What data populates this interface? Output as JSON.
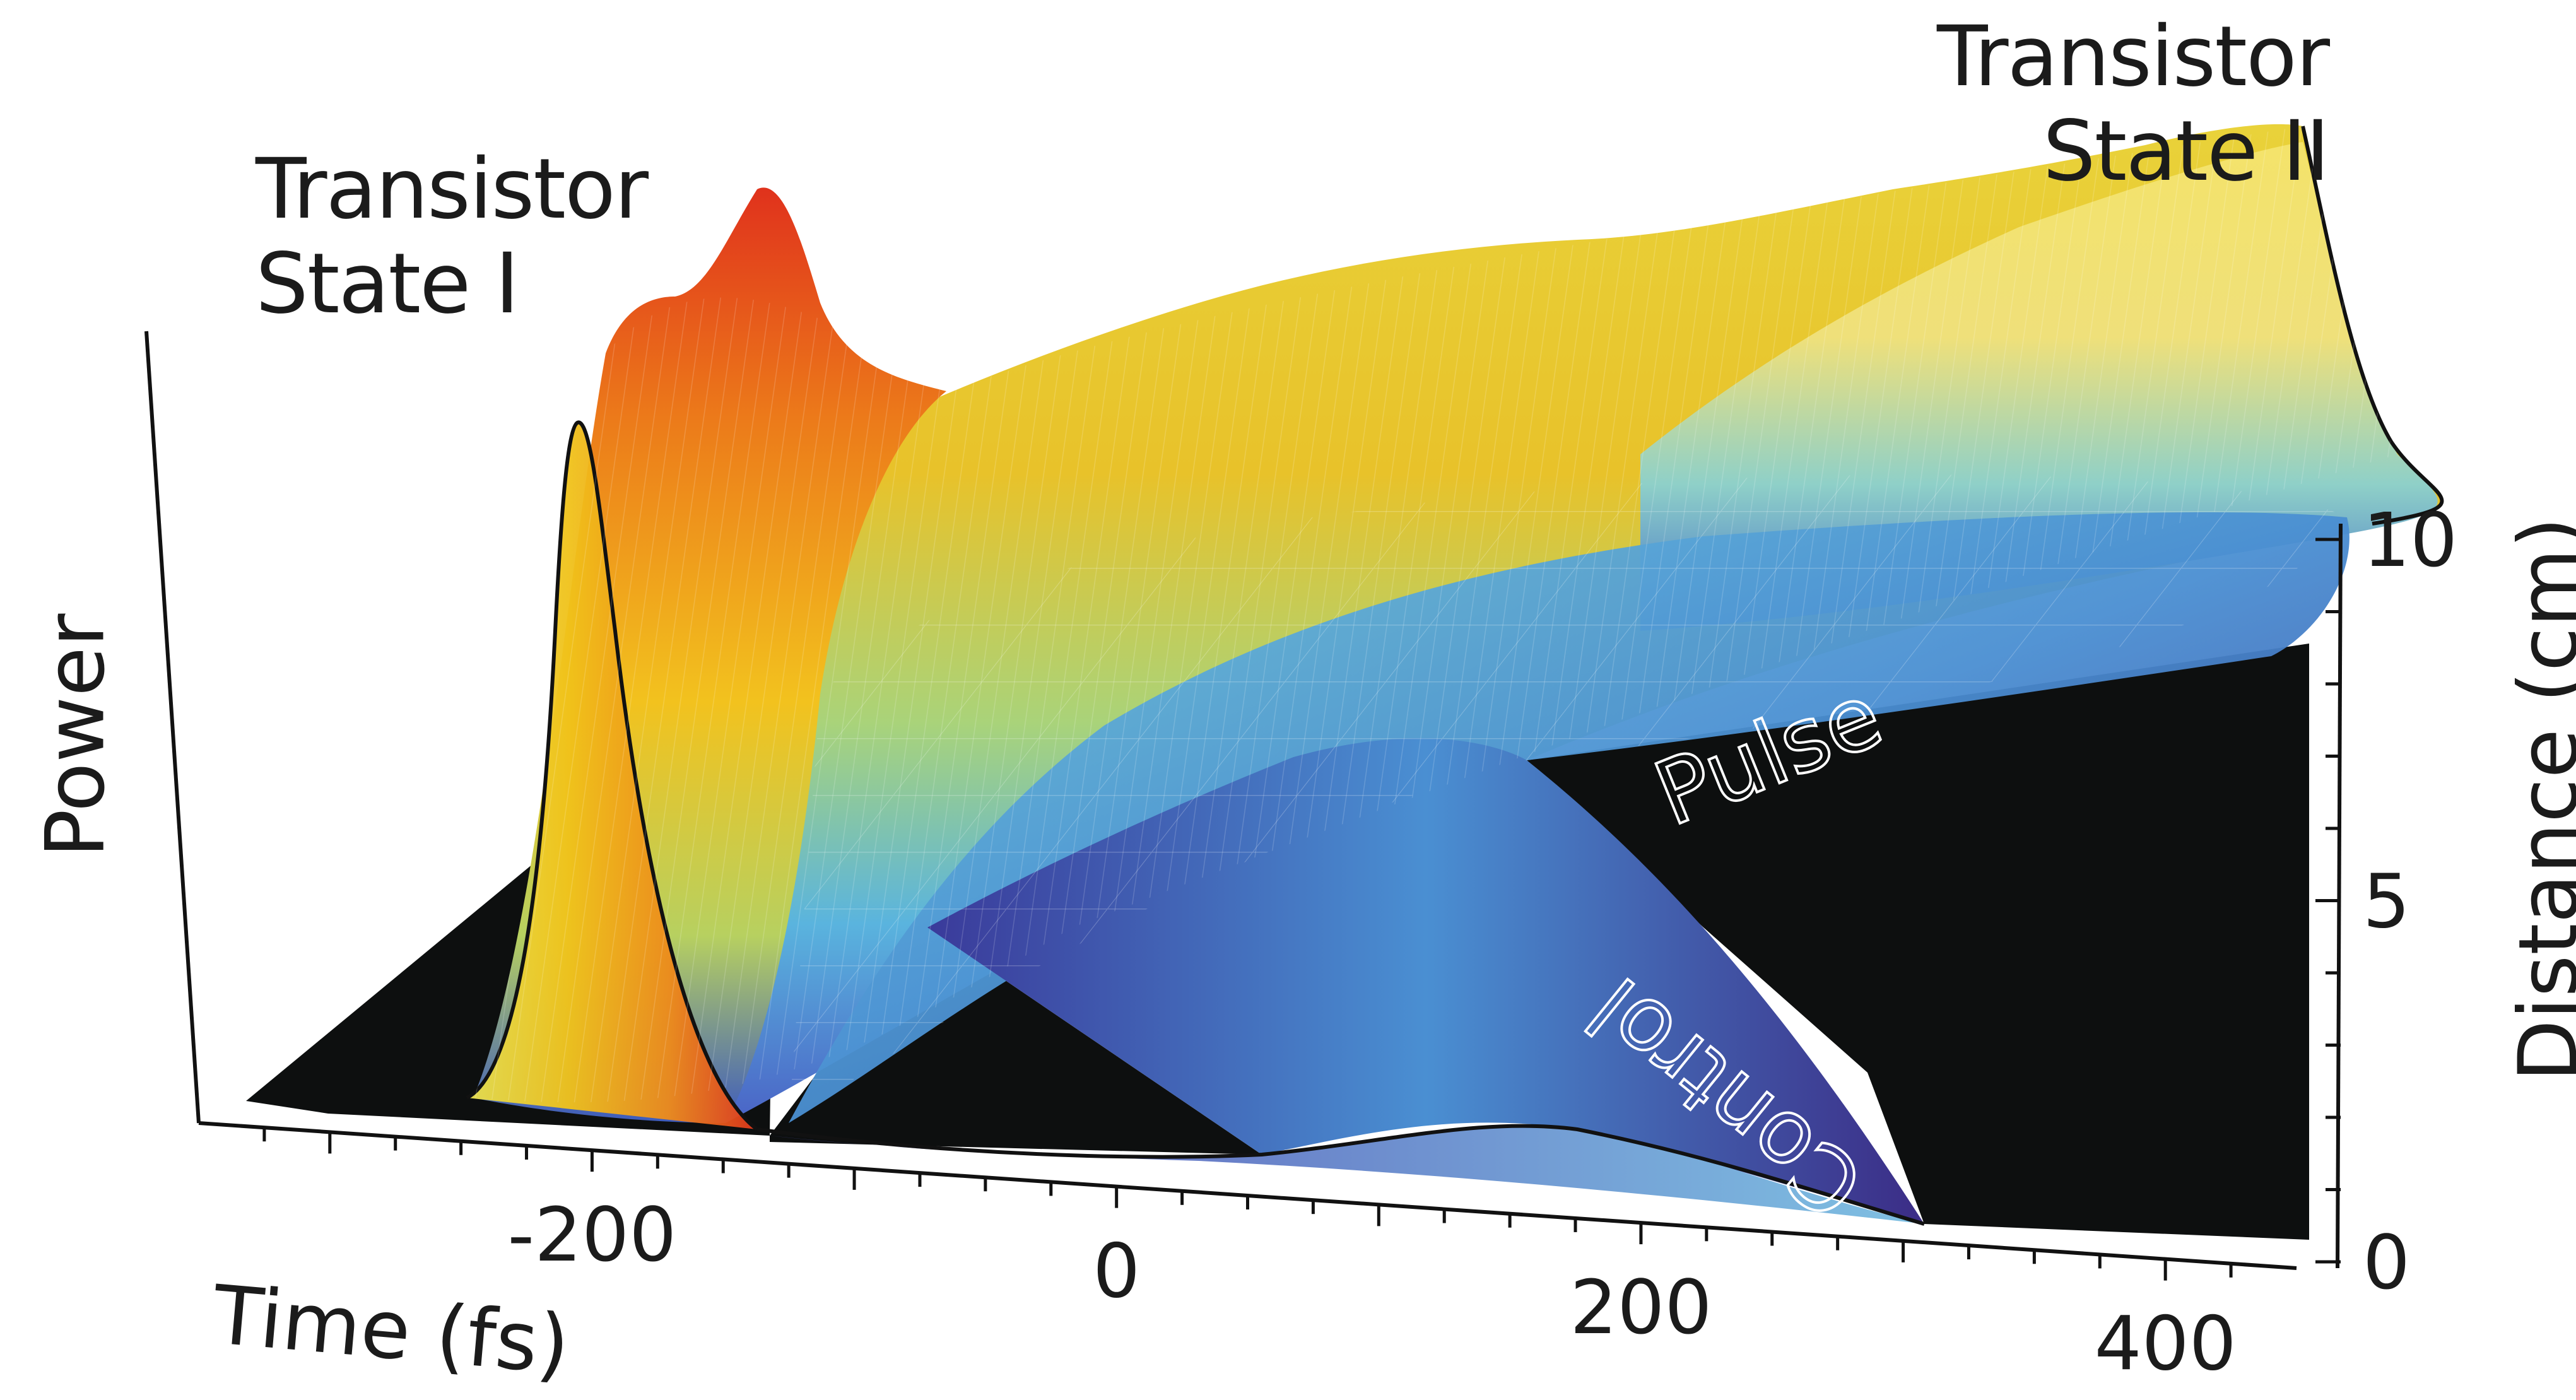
{
  "chart_data": {
    "type": "surface",
    "xlabel": "Time (fs)",
    "ylabel": "Distance (cm)",
    "zlabel": "Power",
    "x_ticks": [
      "-200",
      "0",
      "200",
      "400"
    ],
    "y_ticks": [
      "0",
      "5",
      "10"
    ],
    "x_range": [
      -350,
      450
    ],
    "y_range": [
      0,
      10
    ],
    "annotations": {
      "state_one": [
        "Transistor",
        "State I"
      ],
      "state_two": [
        "Transistor",
        "State II"
      ],
      "pulse_word": "Pulse",
      "control_word": "Control"
    },
    "colormap": [
      "#3b2c86",
      "#4a63c6",
      "#4fa3dc",
      "#8fd0c8",
      "#e6e05a",
      "#f2c21e",
      "#ee8a1a",
      "#e23a1c"
    ],
    "floor_color": "#0d0f0f"
  }
}
